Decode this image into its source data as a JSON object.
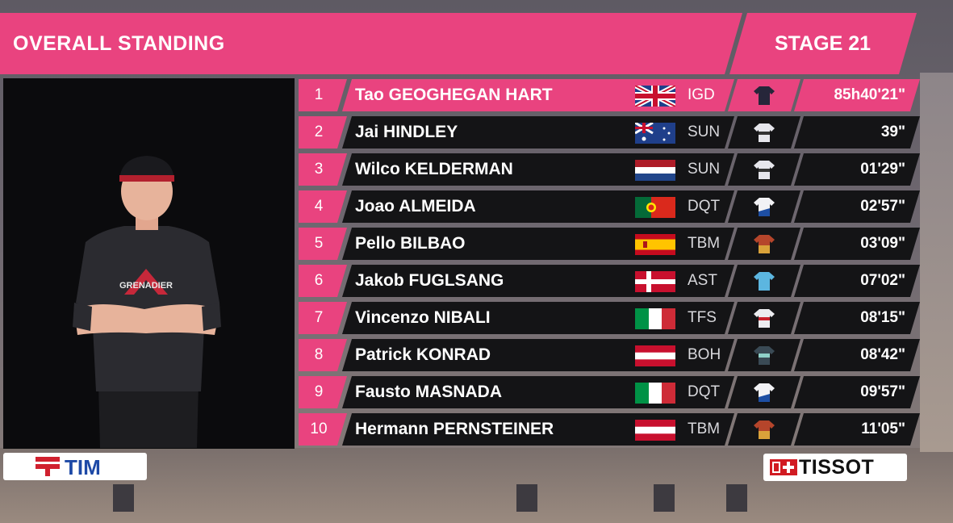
{
  "header": {
    "title": "OVERALL STANDING",
    "stage": "STAGE 21"
  },
  "colors": {
    "accent": "#e9437f",
    "row_bg": "#141416"
  },
  "standings": [
    {
      "pos": "1",
      "name": "Tao GEOGHEGAN HART",
      "flag": "gb",
      "team": "IGD",
      "jersey": "pink-jersey-icon",
      "time": "85h40'21\""
    },
    {
      "pos": "2",
      "name": "Jai HINDLEY",
      "flag": "au",
      "team": "SUN",
      "jersey": "sunweb-jersey-icon",
      "time": "39\""
    },
    {
      "pos": "3",
      "name": "Wilco KELDERMAN",
      "flag": "nl",
      "team": "SUN",
      "jersey": "sunweb-jersey-icon",
      "time": "01'29\""
    },
    {
      "pos": "4",
      "name": "Joao ALMEIDA",
      "flag": "pt",
      "team": "DQT",
      "jersey": "dqt-jersey-icon",
      "time": "02'57\""
    },
    {
      "pos": "5",
      "name": "Pello BILBAO",
      "flag": "es",
      "team": "TBM",
      "jersey": "tbm-jersey-icon",
      "time": "03'09\""
    },
    {
      "pos": "6",
      "name": "Jakob FUGLSANG",
      "flag": "dk",
      "team": "AST",
      "jersey": "ast-jersey-icon",
      "time": "07'02\""
    },
    {
      "pos": "7",
      "name": "Vincenzo NIBALI",
      "flag": "it",
      "team": "TFS",
      "jersey": "tfs-jersey-icon",
      "time": "08'15\""
    },
    {
      "pos": "8",
      "name": "Patrick KONRAD",
      "flag": "at",
      "team": "BOH",
      "jersey": "boh-jersey-icon",
      "time": "08'42\""
    },
    {
      "pos": "9",
      "name": "Fausto MASNADA",
      "flag": "it",
      "team": "DQT",
      "jersey": "dqt-jersey-icon",
      "time": "09'57\""
    },
    {
      "pos": "10",
      "name": "Hermann PERNSTEINER",
      "flag": "at",
      "team": "TBM",
      "jersey": "tbm-jersey-icon",
      "time": "11'05\""
    }
  ],
  "sponsors": {
    "left": "TIM",
    "right": "TISSOT"
  }
}
